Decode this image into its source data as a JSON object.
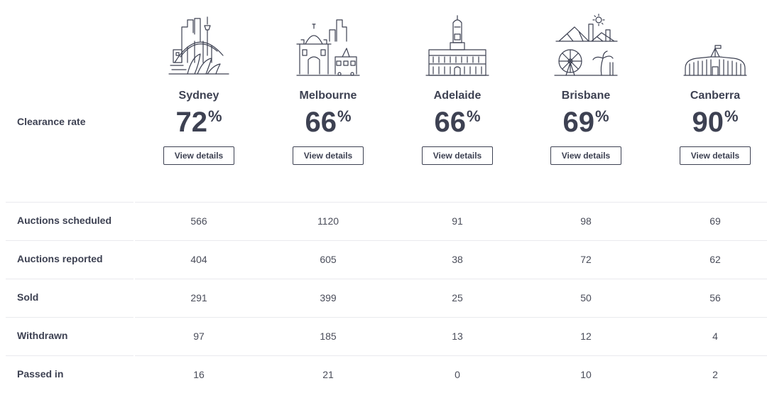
{
  "clearance_label": "Clearance rate",
  "view_label": "View details",
  "percent_symbol": "%",
  "cities": [
    {
      "name": "Sydney",
      "rate": "72",
      "icon": "sydney-skyline-icon"
    },
    {
      "name": "Melbourne",
      "rate": "66",
      "icon": "melbourne-skyline-icon"
    },
    {
      "name": "Adelaide",
      "rate": "66",
      "icon": "adelaide-townhall-icon"
    },
    {
      "name": "Brisbane",
      "rate": "69",
      "icon": "brisbane-skyline-icon"
    },
    {
      "name": "Canberra",
      "rate": "90",
      "icon": "canberra-parliament-icon"
    }
  ],
  "rows": [
    {
      "label": "Auctions scheduled",
      "values": [
        "566",
        "1120",
        "91",
        "98",
        "69"
      ]
    },
    {
      "label": "Auctions reported",
      "values": [
        "404",
        "605",
        "38",
        "72",
        "62"
      ]
    },
    {
      "label": "Sold",
      "values": [
        "291",
        "399",
        "25",
        "50",
        "56"
      ]
    },
    {
      "label": "Withdrawn",
      "values": [
        "97",
        "185",
        "13",
        "12",
        "4"
      ]
    },
    {
      "label": "Passed in",
      "values": [
        "16",
        "21",
        "0",
        "10",
        "2"
      ]
    }
  ]
}
